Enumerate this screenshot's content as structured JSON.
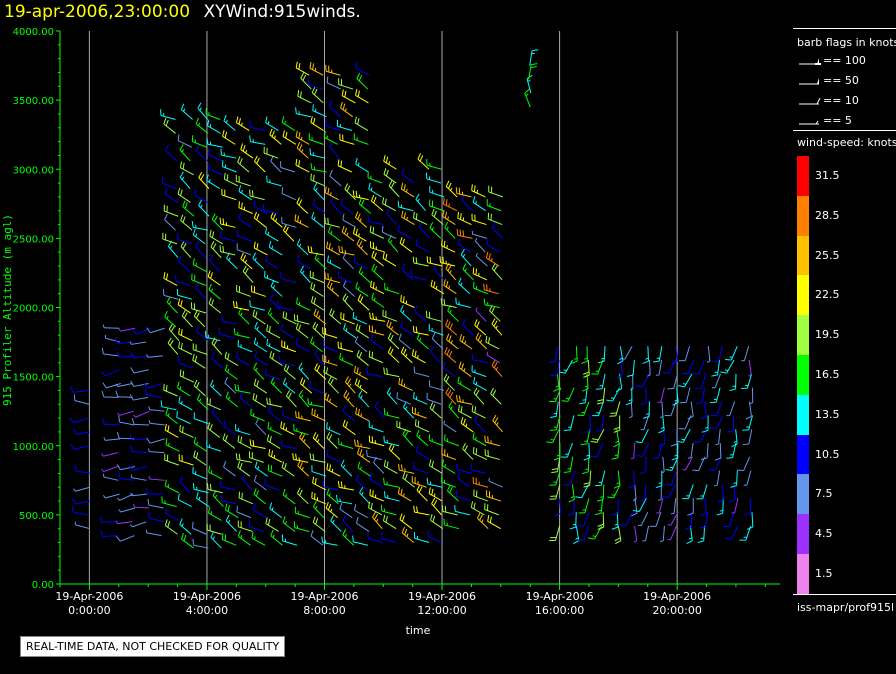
{
  "title": {
    "timestamp": "19-apr-2006,23:00:00",
    "name": "XYWind:915winds."
  },
  "colors": {
    "axis": "#00ff00",
    "grid": "#aaaaaa",
    "text": "#ffffff",
    "title_time": "#ffff00"
  },
  "chart_data": {
    "type": "wind-barb time-height plot",
    "ylabel": "915 Profiler Altitude (m agl)",
    "xlabel": "time",
    "yticks": [
      "0.00",
      "500.00",
      "1000.00",
      "1500.00",
      "2000.00",
      "2500.00",
      "3000.00",
      "3500.00",
      "4000.00"
    ],
    "ylim": [
      0,
      4000
    ],
    "xlim_hours": [
      -1.0,
      23.5
    ],
    "xticks": [
      {
        "hour": 0,
        "date": "19-Apr-2006",
        "time": "0:00:00"
      },
      {
        "hour": 4,
        "date": "19-Apr-2006",
        "time": "4:00:00"
      },
      {
        "hour": 8,
        "date": "19-Apr-2006",
        "time": "8:00:00"
      },
      {
        "hour": 12,
        "date": "19-Apr-2006",
        "time": "12:00:00"
      },
      {
        "hour": 16,
        "date": "19-Apr-2006",
        "time": "16:00:00"
      },
      {
        "hour": 20,
        "date": "19-Apr-2006",
        "time": "20:00:00"
      }
    ],
    "grid": "vertical lines at labeled hours",
    "wind_barb_groups": [
      {
        "hours": [
          0.0
        ],
        "alt_range": [
          400,
          1400
        ],
        "speed_kts": [
          5,
          12
        ],
        "direction": "westerly"
      },
      {
        "hours": [
          1.0,
          1.5,
          2.0,
          2.5
        ],
        "alt_range": [
          350,
          1900
        ],
        "speed_kts": [
          5,
          11
        ],
        "direction": "westerly"
      },
      {
        "hours": [
          3.0,
          3.5,
          4.0,
          4.5
        ],
        "alt_range": [
          260,
          3400
        ],
        "speed_kts": [
          8,
          22
        ],
        "direction": "northwesterly"
      },
      {
        "hours": [
          5.0,
          5.5,
          6.0,
          6.5,
          7.0
        ],
        "alt_range": [
          280,
          3350
        ],
        "speed_kts": [
          8,
          24
        ],
        "direction": "northwesterly"
      },
      {
        "hours": [
          7.5,
          8.0,
          8.5,
          9.0,
          9.5
        ],
        "alt_range": [
          280,
          3700
        ],
        "speed_kts": [
          8,
          27
        ],
        "direction": "northwesterly"
      },
      {
        "hours": [
          10.0,
          10.5,
          11.0,
          11.5,
          12.0
        ],
        "alt_range": [
          300,
          3000
        ],
        "speed_kts": [
          8,
          26
        ],
        "direction": "northwesterly"
      },
      {
        "hours": [
          12.5,
          13.0,
          13.5,
          14.0
        ],
        "alt_range": [
          400,
          2800
        ],
        "speed_kts": [
          5,
          28
        ],
        "direction": "northwesterly"
      },
      {
        "hours": [
          15.0
        ],
        "alt_range": [
          3450,
          3800
        ],
        "speed_kts": [
          10,
          18
        ],
        "direction": "northerly"
      },
      {
        "hours": [
          16.0,
          16.5,
          17.0,
          17.5,
          18.0
        ],
        "alt_range": [
          420,
          1800
        ],
        "speed_kts": [
          10,
          20
        ],
        "direction": "southerly"
      },
      {
        "hours": [
          18.5,
          19.0,
          19.5,
          20.0,
          20.5,
          21.0,
          21.5,
          22.0,
          22.5
        ],
        "alt_range": [
          420,
          1750
        ],
        "speed_kts": [
          5,
          14
        ],
        "direction": "southerly"
      }
    ],
    "legend_flags_title": "barb flags in knots",
    "legend_flags": [
      {
        "label": "== 100",
        "value": 100
      },
      {
        "label": "== 50",
        "value": 50
      },
      {
        "label": "== 10",
        "value": 10
      },
      {
        "label": "== 5",
        "value": 5
      }
    ],
    "colorbar_title": "wind-speed: knots",
    "colorbar": [
      {
        "label": "31.5",
        "color": "#ff0000"
      },
      {
        "label": "28.5",
        "color": "#ff8000"
      },
      {
        "label": "25.5",
        "color": "#ffc000"
      },
      {
        "label": "22.5",
        "color": "#ffff00"
      },
      {
        "label": "19.5",
        "color": "#a0ff40"
      },
      {
        "label": "16.5",
        "color": "#00ff00"
      },
      {
        "label": "13.5",
        "color": "#00ffff"
      },
      {
        "label": "10.5",
        "color": "#0000ff"
      },
      {
        "label": "7.5",
        "color": "#6495ed"
      },
      {
        "label": "4.5",
        "color": "#9b30ff"
      },
      {
        "label": "1.5",
        "color": "#ee82ee"
      }
    ],
    "source": "iss-mapr/prof915l"
  },
  "notice": "REAL-TIME DATA, NOT CHECKED FOR QUALITY"
}
